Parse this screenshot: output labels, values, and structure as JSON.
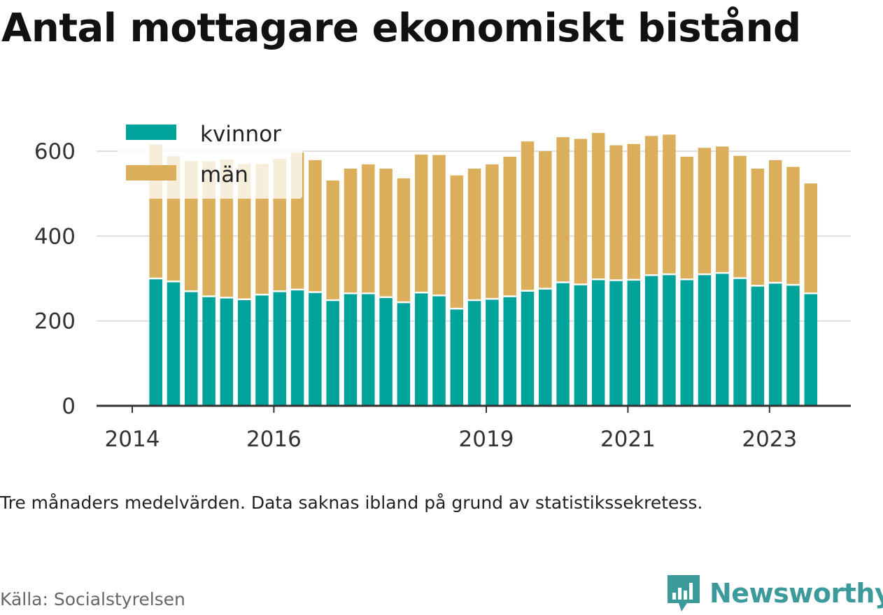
{
  "title": "Antal mottagare ekonomiskt bistånd",
  "note": "Tre månaders medelvärden. Data saknas ibland på grund av statistikssekretess.",
  "source": "Källa: Socialstyrelsen",
  "brand": {
    "name": "Newsworthy",
    "icon": "newsworthy-logo-icon",
    "color": "#3c9a9a"
  },
  "colors": {
    "kvinnor": "#00a39a",
    "man": "#dbae5c",
    "grid": "#dddddd",
    "axis": "#333333"
  },
  "chart_data": {
    "type": "bar",
    "stacked": true,
    "y_ticks": [
      "0",
      "200",
      "400",
      "600"
    ],
    "x_ticks": [
      {
        "label": "2014",
        "at": 2014.0
      },
      {
        "label": "2016",
        "at": 2016.0
      },
      {
        "label": "2019",
        "at": 2019.0
      },
      {
        "label": "2021",
        "at": 2021.0
      },
      {
        "label": "2023",
        "at": 2023.0
      }
    ],
    "ylim": [
      0,
      640
    ],
    "grid": true,
    "legend_position": "top-left",
    "x_start": 2014.333,
    "x_step": 0.25,
    "series": [
      {
        "name": "kvinnor",
        "values": [
          300,
          293,
          270,
          258,
          255,
          251,
          262,
          270,
          274,
          268,
          249,
          265,
          265,
          256,
          244,
          267,
          260,
          229,
          249,
          252,
          258,
          271,
          276,
          291,
          286,
          298,
          296,
          297,
          308,
          310,
          298,
          310,
          313,
          301,
          283,
          290,
          285,
          265
        ]
      },
      {
        "name": "män",
        "values": [
          316,
          295,
          307,
          318,
          326,
          319,
          308,
          312,
          323,
          311,
          282,
          294,
          304,
          303,
          292,
          325,
          331,
          314,
          310,
          317,
          329,
          352,
          324,
          342,
          343,
          345,
          318,
          320,
          328,
          329,
          289,
          298,
          298,
          288,
          276,
          289,
          278,
          259
        ]
      }
    ]
  }
}
